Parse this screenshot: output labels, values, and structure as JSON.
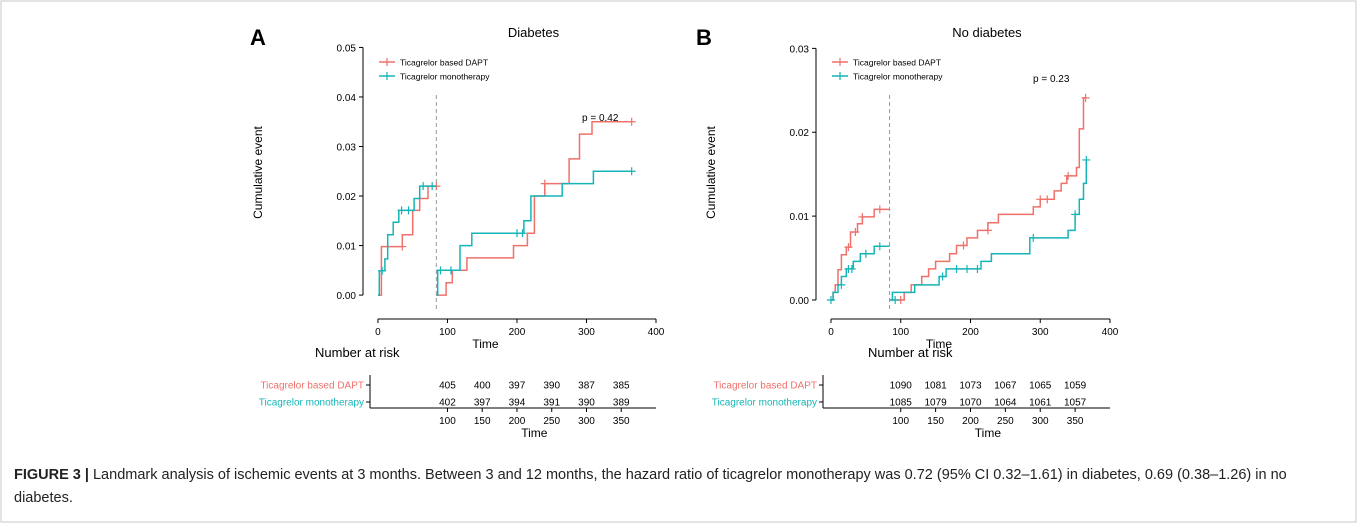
{
  "caption": {
    "label": "FIGURE 3 |",
    "text": " Landmark analysis of ischemic events at 3 months. Between 3 and 12 months, the hazard ratio of ticagrelor monotherapy was 0.72 (95% CI 0.32–1.61) in diabetes, 0.69 (0.38–1.26) in no diabetes."
  },
  "colors": {
    "dapt": "#F0706A",
    "mono": "#14B5B8",
    "axis": "#000000",
    "divider": "#999999"
  },
  "chart_data": [
    {
      "type": "line",
      "panel_label": "A",
      "title": "Diabetes",
      "xlabel": "Time",
      "ylabel": "Cumulative event",
      "xlim": [
        -10,
        400
      ],
      "ylim": [
        -0.002,
        0.0515
      ],
      "xticks": [
        0,
        100,
        200,
        300,
        400
      ],
      "yticks": [
        0.0,
        0.01,
        0.02,
        0.03,
        0.04,
        0.05
      ],
      "ytick_labels": [
        "0.00",
        "0.01",
        "0.02",
        "0.03",
        "0.04",
        "0.05"
      ],
      "landmark": 84,
      "grid": false,
      "legend_position": "top-left",
      "annotation": "p = 0.42",
      "series": [
        {
          "name": "Ticagrelor based DAPT",
          "color_key": "dapt",
          "segments": [
            [
              [
                0,
                0
              ],
              [
                5,
                0
              ],
              [
                5,
                0.0098
              ],
              [
                35,
                0.0098
              ],
              [
                35,
                0.0122
              ],
              [
                50,
                0.0122
              ],
              [
                50,
                0.0171
              ],
              [
                60,
                0.0171
              ],
              [
                60,
                0.0195
              ],
              [
                72,
                0.0195
              ],
              [
                72,
                0.022
              ],
              [
                84,
                0.022
              ]
            ],
            [
              [
                84,
                0
              ],
              [
                98,
                0
              ],
              [
                98,
                0.0025
              ],
              [
                107,
                0.0025
              ],
              [
                107,
                0.005
              ],
              [
                128,
                0.005
              ],
              [
                128,
                0.0075
              ],
              [
                195,
                0.0075
              ],
              [
                195,
                0.01
              ],
              [
                215,
                0.01
              ],
              [
                215,
                0.0125
              ],
              [
                225,
                0.0125
              ],
              [
                225,
                0.02
              ],
              [
                240,
                0.02
              ],
              [
                240,
                0.0225
              ],
              [
                275,
                0.0225
              ],
              [
                275,
                0.0275
              ],
              [
                290,
                0.0275
              ],
              [
                290,
                0.0325
              ],
              [
                308,
                0.0325
              ],
              [
                308,
                0.035
              ],
              [
                365,
                0.035
              ]
            ]
          ],
          "censor": [
            [
              35,
              0.0098
            ],
            [
              84,
              0.022
            ],
            [
              240,
              0.0225
            ],
            [
              365,
              0.035
            ]
          ]
        },
        {
          "name": "Ticagrelor monotherapy",
          "color_key": "mono",
          "segments": [
            [
              [
                0,
                0
              ],
              [
                2,
                0
              ],
              [
                2,
                0.0049
              ],
              [
                10,
                0.0049
              ],
              [
                10,
                0.0073
              ],
              [
                14,
                0.0073
              ],
              [
                14,
                0.0122
              ],
              [
                22,
                0.0122
              ],
              [
                22,
                0.0147
              ],
              [
                30,
                0.0147
              ],
              [
                30,
                0.0171
              ],
              [
                52,
                0.0171
              ],
              [
                52,
                0.0195
              ],
              [
                60,
                0.0195
              ],
              [
                60,
                0.022
              ],
              [
                84,
                0.022
              ]
            ],
            [
              [
                84,
                0
              ],
              [
                86,
                0
              ],
              [
                86,
                0.005
              ],
              [
                118,
                0.005
              ],
              [
                118,
                0.01
              ],
              [
                135,
                0.01
              ],
              [
                135,
                0.0125
              ],
              [
                210,
                0.0125
              ],
              [
                210,
                0.015
              ],
              [
                220,
                0.015
              ],
              [
                220,
                0.02
              ],
              [
                265,
                0.02
              ],
              [
                265,
                0.0225
              ],
              [
                310,
                0.0225
              ],
              [
                310,
                0.025
              ],
              [
                365,
                0.025
              ]
            ]
          ],
          "censor": [
            [
              6,
              0.0049
            ],
            [
              34,
              0.0171
            ],
            [
              44,
              0.0171
            ],
            [
              65,
              0.022
            ],
            [
              78,
              0.022
            ],
            [
              90,
              0.005
            ],
            [
              105,
              0.005
            ],
            [
              200,
              0.0125
            ],
            [
              208,
              0.0125
            ],
            [
              365,
              0.025
            ]
          ]
        }
      ],
      "risk_table": {
        "title": "Number at risk",
        "xlabel": "Time",
        "times": [
          100,
          150,
          200,
          250,
          300,
          350
        ],
        "rows": [
          {
            "name": "Ticagrelor based DAPT",
            "color_key": "dapt",
            "values": [
              405,
              400,
              397,
              390,
              387,
              385
            ]
          },
          {
            "name": "Ticagrelor monotherapy",
            "color_key": "mono",
            "values": [
              402,
              397,
              394,
              391,
              390,
              389
            ]
          }
        ]
      }
    },
    {
      "type": "line",
      "panel_label": "B",
      "title": "No diabetes",
      "xlabel": "Time",
      "ylabel": "Cumulative event",
      "xlim": [
        -10,
        400
      ],
      "ylim": [
        -0.0006,
        0.031
      ],
      "xticks": [
        0,
        100,
        200,
        300,
        400
      ],
      "yticks": [
        0.0,
        0.01,
        0.02,
        0.03
      ],
      "ytick_labels": [
        "0.00",
        "0.01",
        "0.02",
        "0.03"
      ],
      "landmark": 84,
      "grid": false,
      "legend_position": "top-left",
      "annotation": "p = 0.23",
      "series": [
        {
          "name": "Ticagrelor based DAPT",
          "color_key": "dapt",
          "segments": [
            [
              [
                0,
                0
              ],
              [
                3,
                0
              ],
              [
                3,
                0.0009
              ],
              [
                6,
                0.0009
              ],
              [
                6,
                0.0018
              ],
              [
                10,
                0.0018
              ],
              [
                10,
                0.0036
              ],
              [
                15,
                0.0036
              ],
              [
                15,
                0.0054
              ],
              [
                22,
                0.0054
              ],
              [
                22,
                0.0063
              ],
              [
                28,
                0.0063
              ],
              [
                28,
                0.0081
              ],
              [
                38,
                0.0081
              ],
              [
                38,
                0.0091
              ],
              [
                45,
                0.0091
              ],
              [
                45,
                0.0099
              ],
              [
                62,
                0.0099
              ],
              [
                62,
                0.0108
              ],
              [
                84,
                0.0108
              ]
            ],
            [
              [
                84,
                0
              ],
              [
                105,
                0
              ],
              [
                105,
                0.0009
              ],
              [
                115,
                0.0009
              ],
              [
                115,
                0.0018
              ],
              [
                130,
                0.0018
              ],
              [
                130,
                0.0028
              ],
              [
                140,
                0.0028
              ],
              [
                140,
                0.0037
              ],
              [
                150,
                0.0037
              ],
              [
                150,
                0.0046
              ],
              [
                170,
                0.0046
              ],
              [
                170,
                0.0055
              ],
              [
                180,
                0.0055
              ],
              [
                180,
                0.0065
              ],
              [
                195,
                0.0065
              ],
              [
                195,
                0.0074
              ],
              [
                210,
                0.0074
              ],
              [
                210,
                0.0083
              ],
              [
                225,
                0.0083
              ],
              [
                225,
                0.0092
              ],
              [
                240,
                0.0092
              ],
              [
                240,
                0.0102
              ],
              [
                290,
                0.0102
              ],
              [
                290,
                0.0111
              ],
              [
                300,
                0.0111
              ],
              [
                300,
                0.012
              ],
              [
                320,
                0.012
              ],
              [
                320,
                0.013
              ],
              [
                330,
                0.013
              ],
              [
                330,
                0.0139
              ],
              [
                338,
                0.0139
              ],
              [
                338,
                0.0148
              ],
              [
                352,
                0.0148
              ],
              [
                352,
                0.0158
              ],
              [
                356,
                0.0158
              ],
              [
                356,
                0.0204
              ],
              [
                362,
                0.0204
              ],
              [
                362,
                0.0241
              ],
              [
                365,
                0.0241
              ]
            ]
          ],
          "censor": [
            [
              25,
              0.0063
            ],
            [
              35,
              0.0081
            ],
            [
              45,
              0.0099
            ],
            [
              70,
              0.0108
            ],
            [
              100,
              0
            ],
            [
              190,
              0.0065
            ],
            [
              225,
              0.0083
            ],
            [
              300,
              0.012
            ],
            [
              310,
              0.012
            ],
            [
              340,
              0.0148
            ],
            [
              365,
              0.0241
            ]
          ]
        },
        {
          "name": "Ticagrelor monotherapy",
          "color_key": "mono",
          "segments": [
            [
              [
                0,
                0
              ],
              [
                3,
                0
              ],
              [
                3,
                0.0009
              ],
              [
                10,
                0.0009
              ],
              [
                10,
                0.0018
              ],
              [
                15,
                0.0018
              ],
              [
                15,
                0.0028
              ],
              [
                22,
                0.0028
              ],
              [
                22,
                0.0037
              ],
              [
                32,
                0.0037
              ],
              [
                32,
                0.0046
              ],
              [
                42,
                0.0046
              ],
              [
                42,
                0.0055
              ],
              [
                62,
                0.0055
              ],
              [
                62,
                0.0064
              ],
              [
                84,
                0.0064
              ]
            ],
            [
              [
                84,
                0
              ],
              [
                88,
                0
              ],
              [
                88,
                0.0009
              ],
              [
                120,
                0.0009
              ],
              [
                120,
                0.0018
              ],
              [
                155,
                0.0018
              ],
              [
                155,
                0.0028
              ],
              [
                165,
                0.0028
              ],
              [
                165,
                0.0037
              ],
              [
                215,
                0.0037
              ],
              [
                215,
                0.0046
              ],
              [
                230,
                0.0046
              ],
              [
                230,
                0.0055
              ],
              [
                285,
                0.0055
              ],
              [
                285,
                0.0074
              ],
              [
                340,
                0.0074
              ],
              [
                340,
                0.0083
              ],
              [
                350,
                0.0083
              ],
              [
                350,
                0.0102
              ],
              [
                356,
                0.0102
              ],
              [
                356,
                0.012
              ],
              [
                362,
                0.012
              ],
              [
                362,
                0.0139
              ],
              [
                366,
                0.0139
              ],
              [
                366,
                0.0167
              ]
            ]
          ],
          "censor": [
            [
              0,
              0
            ],
            [
              15,
              0.0018
            ],
            [
              25,
              0.0037
            ],
            [
              30,
              0.0037
            ],
            [
              50,
              0.0055
            ],
            [
              70,
              0.0064
            ],
            [
              92,
              0
            ],
            [
              160,
              0.0028
            ],
            [
              180,
              0.0037
            ],
            [
              195,
              0.0037
            ],
            [
              210,
              0.0037
            ],
            [
              290,
              0.0074
            ],
            [
              350,
              0.0102
            ],
            [
              366,
              0.0167
            ]
          ]
        }
      ],
      "risk_table": {
        "title": "Number at risk",
        "xlabel": "Time",
        "times": [
          100,
          150,
          200,
          250,
          300,
          350
        ],
        "rows": [
          {
            "name": "Ticagrelor based DAPT",
            "color_key": "dapt",
            "values": [
              1090,
              1081,
              1073,
              1067,
              1065,
              1059
            ]
          },
          {
            "name": "Ticagrelor monotherapy",
            "color_key": "mono",
            "values": [
              1085,
              1079,
              1070,
              1064,
              1061,
              1057
            ]
          }
        ]
      }
    }
  ]
}
